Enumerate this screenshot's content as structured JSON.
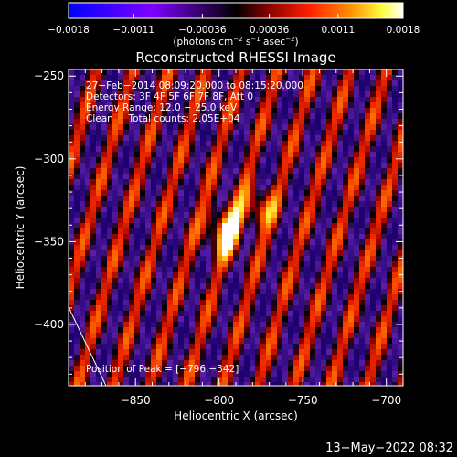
{
  "chart_data": {
    "type": "heatmap",
    "title": "Reconstructed RHESSI Image",
    "xlabel": "Heliocentric X (arcsec)",
    "ylabel": "Heliocentric Y (arcsec)",
    "xlim": [
      -890,
      -690
    ],
    "ylim": [
      -437,
      -246
    ],
    "x_ticks": [
      {
        "value": -850,
        "label": "−850"
      },
      {
        "value": -800,
        "label": "−800"
      },
      {
        "value": -750,
        "label": "−750"
      },
      {
        "value": -700,
        "label": "−700"
      }
    ],
    "y_ticks": [
      {
        "value": -250,
        "label": "−250"
      },
      {
        "value": -300,
        "label": "−300"
      },
      {
        "value": -350,
        "label": "−350"
      },
      {
        "value": -400,
        "label": "−400"
      }
    ],
    "colorbar": {
      "range": [
        -0.0018,
        0.0018
      ],
      "tick_values": [
        -0.0018,
        -0.0011,
        -0.00036,
        0.00036,
        0.0011,
        0.0018
      ],
      "tick_labels": [
        "−0.0018",
        "−0.0011",
        "−0.00036",
        "0.00036",
        "0.0011",
        "0.0018"
      ],
      "unit_parts": [
        "(photons cm",
        "−2",
        " s",
        "−1",
        " asec",
        "−2",
        ")"
      ]
    },
    "annotations": [
      "27−Feb−2014 08:09:20.000 to 08:15:20.000",
      "Detectors: 3F 4F 5F 6F 7F 8F, Att 0",
      "Energy Range: 12.0 − 25.0 keV",
      "Clean     Total counts: 2.05E+04"
    ],
    "peak_label": "Position of Peak = [−796,−342]",
    "peak": {
      "x": -796,
      "y": -342
    },
    "footer_timestamp": "13−May−2022 08:32"
  }
}
